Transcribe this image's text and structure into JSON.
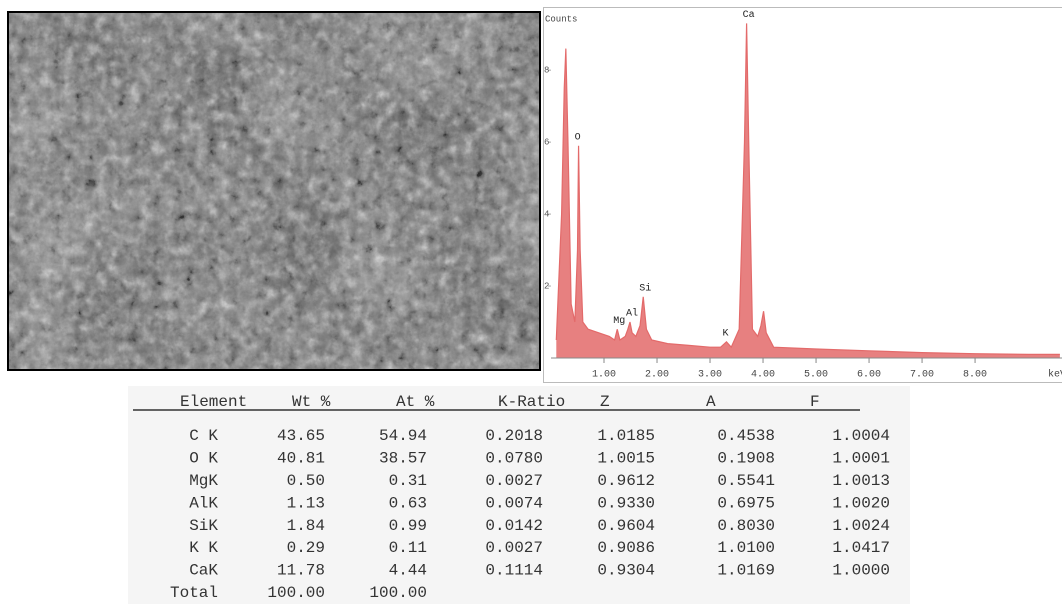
{
  "chart_data": {
    "type": "area",
    "y_axis_label": "Counts",
    "x_axis_label": "keV",
    "x": [
      0.1,
      0.2,
      0.25,
      0.28,
      0.32,
      0.38,
      0.45,
      0.5,
      0.52,
      0.55,
      0.6,
      0.7,
      0.9,
      1.1,
      1.2,
      1.25,
      1.3,
      1.4,
      1.45,
      1.49,
      1.53,
      1.6,
      1.68,
      1.74,
      1.8,
      1.9,
      2.2,
      2.6,
      3.0,
      3.2,
      3.31,
      3.4,
      3.55,
      3.65,
      3.69,
      3.73,
      3.8,
      3.9,
      3.96,
      4.01,
      4.06,
      4.2,
      5,
      6,
      7,
      8,
      9,
      9.6
    ],
    "values": [
      0.5,
      4,
      7.5,
      8.6,
      6,
      1.5,
      1,
      3,
      5.9,
      3,
      1,
      0.8,
      0.7,
      0.6,
      0.5,
      0.8,
      0.5,
      0.6,
      0.8,
      1.0,
      0.7,
      0.6,
      0.9,
      1.7,
      0.8,
      0.5,
      0.4,
      0.35,
      0.3,
      0.3,
      0.45,
      0.3,
      0.8,
      6,
      9.3,
      6,
      0.8,
      0.6,
      0.9,
      1.3,
      0.7,
      0.3,
      0.25,
      0.2,
      0.15,
      0.12,
      0.1,
      0.1
    ],
    "color": "#e36a6a",
    "xlim": [
      0,
      9.64
    ],
    "ylim": [
      0,
      9.7
    ],
    "xticks": [
      {
        "value": 1,
        "label": "1.00"
      },
      {
        "value": 2,
        "label": "2.00"
      },
      {
        "value": 3,
        "label": "3.00"
      },
      {
        "value": 4,
        "label": "4.00"
      },
      {
        "value": 5,
        "label": "5.00"
      },
      {
        "value": 6,
        "label": "6.00"
      },
      {
        "value": 7,
        "label": "7.00"
      },
      {
        "value": 8,
        "label": "8.00"
      }
    ],
    "yticks": [
      2,
      4,
      6,
      8
    ],
    "annotations": [
      {
        "text": "Ca",
        "x": 3.69,
        "y": 9.3
      },
      {
        "text": "O",
        "x": 0.52,
        "y": 5.9
      },
      {
        "text": "Si",
        "x": 1.74,
        "y": 1.7
      },
      {
        "text": "Al",
        "x": 1.49,
        "y": 1.0
      },
      {
        "text": "Mg",
        "x": 1.25,
        "y": 0.8
      },
      {
        "text": "K",
        "x": 3.31,
        "y": 0.45
      }
    ]
  },
  "table": {
    "header": [
      "Element",
      "Wt %",
      "At %",
      "K-Ratio",
      "Z",
      "A",
      "F"
    ],
    "rows": [
      [
        "C K",
        "43.65",
        "54.94",
        "0.2018",
        "1.0185",
        "0.4538",
        "1.0004"
      ],
      [
        "O K",
        "40.81",
        "38.57",
        "0.0780",
        "1.0015",
        "0.1908",
        "1.0001"
      ],
      [
        "MgK",
        "0.50",
        "0.31",
        "0.0027",
        "0.9612",
        "0.5541",
        "1.0013"
      ],
      [
        "AlK",
        "1.13",
        "0.63",
        "0.0074",
        "0.9330",
        "0.6975",
        "1.0020"
      ],
      [
        "SiK",
        "1.84",
        "0.99",
        "0.0142",
        "0.9604",
        "0.8030",
        "1.0024"
      ],
      [
        "K K",
        "0.29",
        "0.11",
        "0.0027",
        "0.9086",
        "1.0100",
        "1.0417"
      ],
      [
        "CaK",
        "11.78",
        "4.44",
        "0.1114",
        "0.9304",
        "1.0169",
        "1.0000"
      ],
      [
        "Total",
        "100.00",
        "100.00"
      ]
    ]
  }
}
